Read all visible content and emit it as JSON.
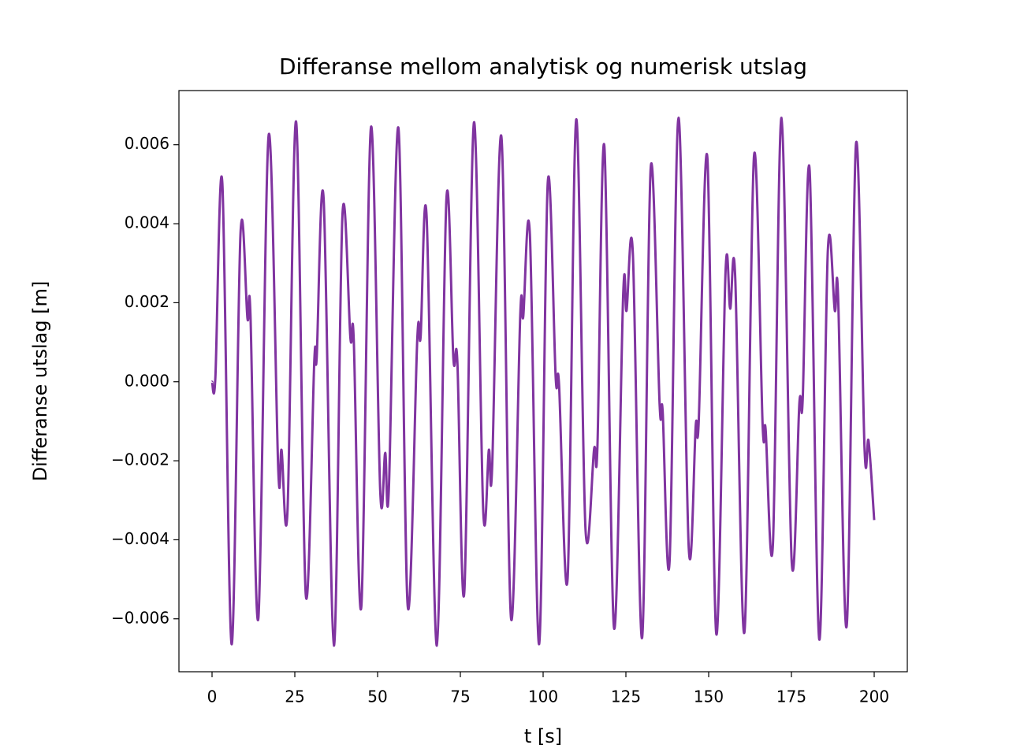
{
  "chart_data": {
    "type": "line",
    "title": "Differanse mellom analytisk og numerisk utslag",
    "x_label": "t [s]",
    "y_label": "Differanse utslag [m]",
    "xlim": [
      -10,
      210
    ],
    "ylim": [
      -0.00734,
      0.00737
    ],
    "xticks": [
      0,
      25,
      50,
      75,
      100,
      125,
      150,
      175,
      200
    ],
    "yticks": [
      {
        "value": -0.006,
        "label": "−0.006"
      },
      {
        "value": -0.004,
        "label": "−0.004"
      },
      {
        "value": -0.002,
        "label": "−0.002"
      },
      {
        "value": 0,
        "label": "0.000"
      },
      0.002,
      0.004,
      0.006
    ],
    "grid": false,
    "x": [
      0,
      1,
      3.1,
      5.9,
      8.6,
      10.7,
      11.6,
      14,
      17.1,
      20,
      21,
      22.8,
      25.4,
      28.3,
      30.9,
      31.6,
      33.7,
      36.8,
      39.4,
      41.8,
      42.8,
      45.1,
      48,
      50.8,
      52.3,
      53.4,
      56.3,
      59.1,
      62,
      63,
      64.8,
      67.9,
      70.8,
      72.9,
      74.1,
      76.2,
      79.1,
      81.9,
      83.6,
      84.6,
      87.4,
      90.3,
      93.1,
      94,
      96,
      98.8,
      101.4,
      103.8,
      104.8,
      107.4,
      110,
      112.8,
      115.4,
      116.4,
      118.5,
      121.4,
      124.2,
      125.2,
      127.1,
      129.9,
      132.5,
      135.2,
      136.1,
      138.2,
      140.9,
      144,
      146.1,
      147,
      149.6,
      152.3,
      155.1,
      156.5,
      158,
      160.8,
      163.7,
      166.3,
      167.2,
      169.4,
      172,
      175.1,
      177.4,
      178.4,
      180.5,
      183.4,
      186,
      188.1,
      189.1,
      191.7,
      194.5,
      197.1,
      198.3,
      200
    ],
    "series": [
      {
        "color": "#8034a0",
        "values": [
          0,
          0.0001,
          0.00504,
          -0.00664,
          0.00376,
          0.0016,
          0.0017,
          -0.00598,
          0.00624,
          -0.00223,
          -0.00173,
          -0.00325,
          0.00658,
          -0.00538,
          0.00056,
          0.0006,
          0.00464,
          -0.00668,
          0.00424,
          0.0011,
          0.00106,
          -0.00568,
          0.00644,
          -0.00277,
          -0.0018,
          -0.00273,
          0.00642,
          -0.00568,
          0.0011,
          0.00114,
          0.0042,
          -0.00668,
          0.00464,
          0.00058,
          0.0005,
          -0.00532,
          0.00656,
          -0.00325,
          -0.00173,
          -0.00217,
          0.0062,
          -0.00598,
          0.0017,
          0.00165,
          0.00373,
          -0.00664,
          0.00504,
          0.0001,
          -6e-05,
          -0.00498,
          0.00664,
          -0.00373,
          -0.0017,
          -0.00165,
          0.00596,
          -0.00622,
          0.00225,
          0.0018,
          0.00325,
          -0.00648,
          0.00542,
          -0.0006,
          -0.00074,
          -0.00454,
          0.00668,
          -0.00423,
          -0.0011,
          -0.001,
          0.00568,
          -0.00638,
          0.00279,
          0.00185,
          0.00269,
          -0.00634,
          0.00572,
          -0.0011,
          -0.0012,
          -0.00413,
          0.00668,
          -0.00458,
          -0.00054,
          -0.00046,
          0.00536,
          -0.00652,
          0.00333,
          0.0018,
          0.00215,
          -0.00618,
          0.00602,
          -0.00173,
          -0.0015,
          -0.0035
        ]
      }
    ]
  }
}
